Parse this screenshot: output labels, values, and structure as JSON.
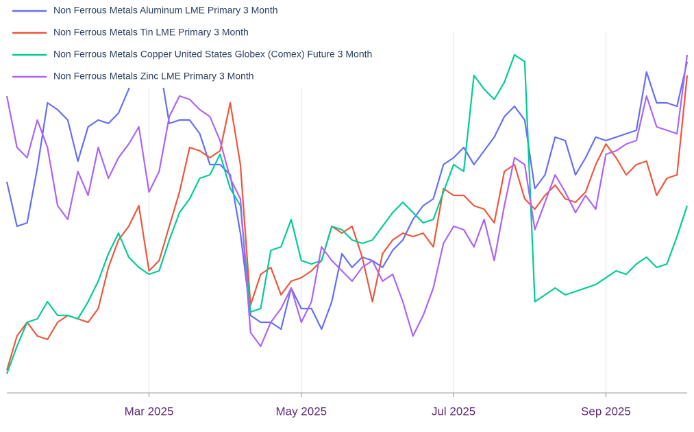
{
  "chart_data": {
    "type": "line",
    "categories": [
      null,
      null,
      null,
      null,
      null,
      null,
      null,
      null,
      null,
      null,
      null,
      null,
      null,
      null,
      "Mar 2025",
      null,
      null,
      null,
      null,
      null,
      null,
      null,
      null,
      null,
      null,
      null,
      null,
      null,
      null,
      "May 2025",
      null,
      null,
      null,
      null,
      null,
      null,
      null,
      null,
      null,
      null,
      null,
      null,
      null,
      null,
      "Jul 2025",
      null,
      null,
      null,
      null,
      null,
      null,
      null,
      null,
      null,
      null,
      null,
      null,
      null,
      null,
      "Sep 2025",
      null,
      null,
      null,
      null,
      null,
      null,
      null,
      null
    ],
    "series": [
      {
        "name": "Non Ferrous Metals Aluminum LME Primary 3 Month",
        "color": "#636efa",
        "values": [
          31.5,
          25,
          25.5,
          33.5,
          43,
          42,
          40.5,
          34.5,
          39.5,
          40.5,
          40,
          41.5,
          45,
          52,
          48,
          49,
          40,
          40.5,
          40.5,
          38.5,
          34,
          34,
          32.5,
          24,
          12,
          11,
          11,
          10,
          16,
          13,
          13,
          10,
          14,
          21,
          19,
          20.5,
          20,
          19,
          21.5,
          23,
          26,
          28,
          29,
          34,
          35,
          36.5,
          34,
          36,
          38,
          41,
          42.5,
          40.5,
          30.5,
          32.5,
          38,
          37.5,
          32.5,
          35,
          38,
          37.5,
          38,
          38.5,
          39,
          47.5,
          43,
          43,
          42.5,
          49
        ]
      },
      {
        "name": "Non Ferrous Metals Tin LME Primary 3 Month",
        "color": "#ef553b",
        "values": [
          4,
          9,
          11,
          9,
          8.5,
          11,
          12,
          11.5,
          11,
          13,
          19,
          23,
          25,
          28,
          18.5,
          20,
          25,
          30,
          36.5,
          36,
          35,
          36,
          43,
          34,
          13.5,
          18,
          19,
          15,
          17,
          17.5,
          18.5,
          20,
          25,
          24,
          25,
          20.5,
          14,
          21,
          23,
          24,
          23.5,
          24,
          22,
          30.5,
          29.5,
          29.5,
          28,
          27.5,
          25.5,
          33,
          34,
          29,
          27.5,
          29.5,
          31,
          29,
          28.5,
          30,
          34,
          37,
          35,
          32.5,
          34,
          34.5,
          29.5,
          32,
          32.5,
          47
        ]
      },
      {
        "name": "Non Ferrous Metals Copper United States Globex (Comex) Future 3 Month",
        "color": "#00cc96",
        "values": [
          3.5,
          7.5,
          11,
          11.5,
          14,
          12,
          12,
          11.5,
          14,
          17,
          21,
          24,
          20.5,
          19,
          18,
          18.5,
          23,
          27,
          29,
          32,
          32.5,
          35.5,
          30.5,
          28,
          12.5,
          13,
          21.5,
          22,
          26,
          20,
          19.5,
          20,
          25,
          24.5,
          23,
          22.5,
          23,
          25,
          27,
          28.5,
          27,
          25.5,
          26,
          30,
          34,
          33,
          47,
          45,
          43.5,
          46,
          50,
          49,
          14,
          15,
          16,
          15,
          15.5,
          16,
          16.5,
          17.5,
          18.5,
          18,
          19.5,
          20.5,
          19,
          19.5,
          23.5,
          28
        ]
      },
      {
        "name": "Non Ferrous Metals Zinc LME Primary 3 Month",
        "color": "#ab63fa",
        "values": [
          44,
          36.5,
          35,
          40.5,
          36.5,
          28,
          26,
          33,
          29.5,
          36.5,
          32,
          35,
          37,
          39.5,
          30,
          33,
          41,
          44,
          43.5,
          42,
          41,
          37.5,
          32,
          29,
          9.5,
          7.5,
          11,
          13,
          16,
          11,
          14,
          22,
          20,
          18.5,
          17,
          19,
          20,
          17,
          18,
          14,
          9,
          12,
          16,
          22.5,
          25,
          24.5,
          22,
          26,
          20,
          28,
          35,
          34,
          24.5,
          28.5,
          32.5,
          30,
          27,
          29.5,
          27.5,
          35.5,
          36,
          37,
          37.5,
          44,
          39.5,
          39,
          38.5,
          50
        ]
      }
    ],
    "ylim": [
      0,
      54
    ],
    "grid": true,
    "legend": "top-left"
  }
}
